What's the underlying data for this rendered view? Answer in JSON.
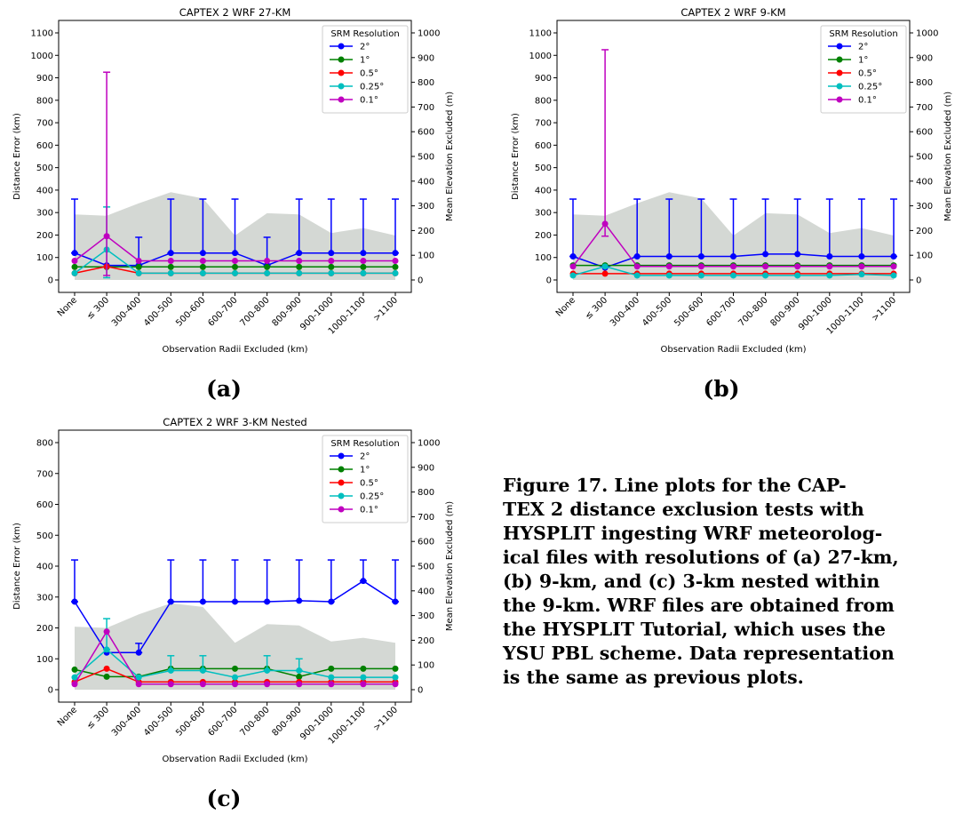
{
  "figure": {
    "caption_lines": [
      "Figure 17.  Line plots for the CAP-",
      "TEX 2 distance exclusion tests with",
      "HYSPLIT ingesting WRF meteorolog-",
      "ical files with resolutions of (a) 27-km,",
      "(b) 9-km, and (c) 3-km nested within",
      "the 9-km. WRF files are obtained from",
      "the HYSPLIT Tutorial, which uses the",
      "YSU PBL scheme. Data representation",
      "is the same as previous plots."
    ]
  },
  "chart_data": [
    {
      "panel": "(a)",
      "type": "line",
      "title": "CAPTEX 2 WRF 27-KM",
      "xlabel": "Observation Radii Excluded (km)",
      "ylabel": "Distance Error (km)",
      "y2label": "Mean Elevation Excluded (m)",
      "categories": [
        "None",
        "≤ 300",
        "300-400",
        "400-500",
        "500-600",
        "600-700",
        "700-800",
        "800-900",
        "900-1000",
        "1000-1100",
        ">1100"
      ],
      "ylim": [
        0,
        1100
      ],
      "yticks": [
        0,
        100,
        200,
        300,
        400,
        500,
        600,
        700,
        800,
        900,
        1000,
        1100
      ],
      "y2lim": [
        0,
        1000
      ],
      "y2ticks": [
        0,
        100,
        200,
        300,
        400,
        500,
        600,
        700,
        800,
        900,
        1000
      ],
      "legend_title": "SRM Resolution",
      "legend_position": "top-right",
      "elevation": [
        265,
        260,
        310,
        355,
        330,
        180,
        270,
        265,
        190,
        210,
        180
      ],
      "series": [
        {
          "name": "2°",
          "color": "#0000ff",
          "values": [
            120,
            65,
            65,
            120,
            120,
            120,
            65,
            120,
            120,
            120,
            120
          ],
          "err_up": [
            360,
            65,
            190,
            360,
            360,
            360,
            190,
            360,
            360,
            360,
            360
          ],
          "err_low": [
            120,
            65,
            65,
            120,
            120,
            120,
            65,
            120,
            120,
            120,
            120
          ]
        },
        {
          "name": "1°",
          "color": "#008000",
          "values": [
            58,
            58,
            58,
            58,
            58,
            58,
            58,
            58,
            58,
            58,
            58
          ]
        },
        {
          "name": "0.5°",
          "color": "#ff0000",
          "values": [
            30,
            60,
            30,
            30,
            30,
            30,
            30,
            30,
            30,
            30,
            30
          ]
        },
        {
          "name": "0.25°",
          "color": "#00bfbf",
          "values": [
            30,
            135,
            30,
            30,
            30,
            30,
            30,
            30,
            30,
            30,
            30
          ],
          "err_up": [
            30,
            325,
            30,
            30,
            30,
            30,
            30,
            30,
            30,
            30,
            30
          ],
          "err_low": [
            30,
            10,
            30,
            30,
            30,
            30,
            30,
            30,
            30,
            30,
            30
          ]
        },
        {
          "name": "0.1°",
          "color": "#bf00bf",
          "values": [
            85,
            195,
            85,
            85,
            85,
            85,
            85,
            85,
            85,
            85,
            85
          ],
          "err_up": [
            85,
            925,
            85,
            85,
            85,
            85,
            85,
            85,
            85,
            85,
            85
          ],
          "err_low": [
            85,
            20,
            85,
            85,
            85,
            85,
            85,
            85,
            85,
            85,
            85
          ]
        }
      ]
    },
    {
      "panel": "(b)",
      "type": "line",
      "title": "CAPTEX 2 WRF 9-KM",
      "xlabel": "Observation Radii Excluded (km)",
      "ylabel": "Distance Error (km)",
      "y2label": "Mean Elevation Excluded (m)",
      "categories": [
        "None",
        "≤ 300",
        "300-400",
        "400-500",
        "500-600",
        "600-700",
        "700-800",
        "800-900",
        "900-1000",
        "1000-1100",
        ">1100"
      ],
      "ylim": [
        0,
        1100
      ],
      "yticks": [
        0,
        100,
        200,
        300,
        400,
        500,
        600,
        700,
        800,
        900,
        1000,
        1100
      ],
      "y2lim": [
        0,
        1000
      ],
      "y2ticks": [
        0,
        100,
        200,
        300,
        400,
        500,
        600,
        700,
        800,
        900,
        1000
      ],
      "legend_title": "SRM Resolution",
      "legend_position": "top-right",
      "elevation": [
        265,
        260,
        310,
        355,
        330,
        180,
        270,
        265,
        190,
        210,
        180
      ],
      "series": [
        {
          "name": "2°",
          "color": "#0000ff",
          "values": [
            105,
            55,
            105,
            105,
            105,
            105,
            115,
            115,
            105,
            105,
            105
          ],
          "err_up": [
            360,
            55,
            360,
            360,
            360,
            360,
            360,
            360,
            360,
            360,
            360
          ],
          "err_low": [
            105,
            55,
            105,
            105,
            105,
            105,
            115,
            115,
            105,
            105,
            105
          ]
        },
        {
          "name": "1°",
          "color": "#008000",
          "values": [
            65,
            65,
            65,
            65,
            65,
            65,
            65,
            65,
            65,
            65,
            65
          ]
        },
        {
          "name": "0.5°",
          "color": "#ff0000",
          "values": [
            28,
            28,
            28,
            28,
            28,
            28,
            28,
            28,
            28,
            28,
            28
          ]
        },
        {
          "name": "0.25°",
          "color": "#00bfbf",
          "values": [
            20,
            60,
            20,
            20,
            20,
            20,
            20,
            20,
            20,
            25,
            20
          ]
        },
        {
          "name": "0.1°",
          "color": "#bf00bf",
          "values": [
            60,
            250,
            60,
            60,
            60,
            60,
            60,
            60,
            60,
            60,
            60
          ],
          "err_up": [
            60,
            1025,
            60,
            60,
            60,
            60,
            60,
            60,
            60,
            60,
            60
          ],
          "err_low": [
            60,
            195,
            60,
            60,
            60,
            60,
            60,
            60,
            60,
            60,
            60
          ]
        }
      ]
    },
    {
      "panel": "(c)",
      "type": "line",
      "title": "CAPTEX 2 WRF 3-KM Nested",
      "xlabel": "Observation Radii Excluded (km)",
      "ylabel": "Distance Error (km)",
      "y2label": "Mean Elevation Excluded (m)",
      "categories": [
        "None",
        "≤ 300",
        "300-400",
        "400-500",
        "500-600",
        "600-700",
        "700-800",
        "800-900",
        "900-1000",
        "1000-1100",
        ">1100"
      ],
      "ylim": [
        0,
        800
      ],
      "yticks": [
        0,
        100,
        200,
        300,
        400,
        500,
        600,
        700,
        800
      ],
      "y2lim": [
        0,
        1000
      ],
      "y2ticks": [
        0,
        100,
        200,
        300,
        400,
        500,
        600,
        700,
        800,
        900,
        1000
      ],
      "legend_title": "SRM Resolution",
      "legend_position": "top-right",
      "elevation": [
        255,
        250,
        305,
        350,
        335,
        190,
        265,
        260,
        195,
        210,
        190
      ],
      "series": [
        {
          "name": "2°",
          "color": "#0000ff",
          "values": [
            285,
            120,
            120,
            285,
            285,
            285,
            285,
            288,
            285,
            352,
            285
          ],
          "err_up": [
            420,
            120,
            150,
            420,
            420,
            420,
            420,
            420,
            420,
            420,
            420
          ],
          "err_low": [
            285,
            120,
            120,
            285,
            285,
            285,
            285,
            288,
            285,
            352,
            285
          ]
        },
        {
          "name": "1°",
          "color": "#008000",
          "values": [
            65,
            42,
            42,
            68,
            68,
            68,
            68,
            42,
            68,
            68,
            68
          ]
        },
        {
          "name": "0.5°",
          "color": "#ff0000",
          "values": [
            25,
            68,
            25,
            25,
            25,
            25,
            25,
            25,
            25,
            25,
            25
          ]
        },
        {
          "name": "0.25°",
          "color": "#00bfbf",
          "values": [
            40,
            130,
            40,
            62,
            62,
            40,
            62,
            62,
            40,
            40,
            40
          ],
          "err_up": [
            40,
            230,
            40,
            110,
            110,
            40,
            110,
            100,
            40,
            40,
            40
          ],
          "err_low": [
            40,
            130,
            40,
            62,
            62,
            40,
            62,
            62,
            40,
            40,
            40
          ]
        },
        {
          "name": "0.1°",
          "color": "#bf00bf",
          "values": [
            18,
            188,
            18,
            18,
            18,
            18,
            18,
            18,
            18,
            18,
            18
          ]
        }
      ]
    }
  ]
}
